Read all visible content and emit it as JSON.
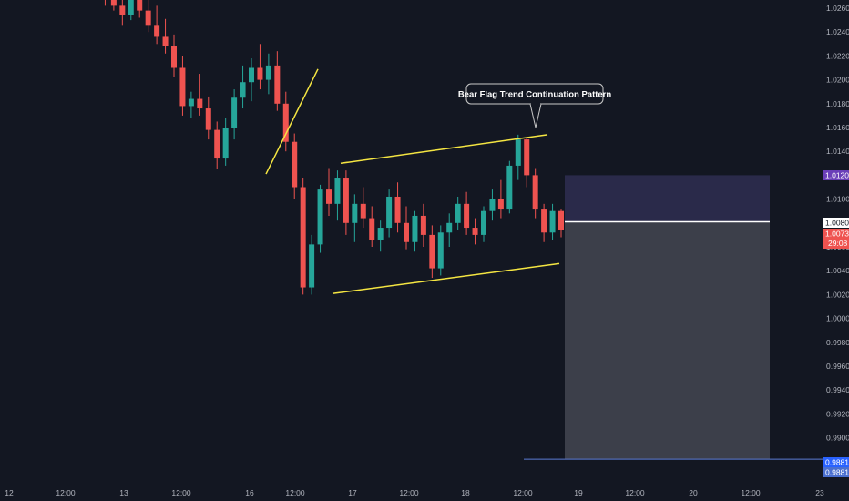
{
  "chart_data": {
    "type": "candlestick",
    "title": "",
    "xlabel": "",
    "ylabel": "",
    "ylim": [
      0.9865,
      1.028
    ],
    "grid": false,
    "y_ticks": [
      "1.02600",
      "1.02400",
      "1.02200",
      "1.02000",
      "1.01800",
      "1.01600",
      "1.01400",
      "1.01200",
      "1.01000",
      "1.00800",
      "1.00600",
      "1.00400",
      "1.00200",
      "1.00000",
      "0.99800",
      "0.99600",
      "0.99400",
      "0.99200",
      "0.99000",
      "0.98800"
    ],
    "x_ticks": [
      "12",
      "12:00",
      "13",
      "12:00",
      "16",
      "12:00",
      "17",
      "12:00",
      "18",
      "12:00",
      "19",
      "12:00",
      "20",
      "12:00",
      "23"
    ],
    "colors": {
      "up": "#26a69a",
      "down": "#ef5350",
      "trendline": "#f5e642",
      "target_zone": "#2a2a4a",
      "stop_zone": "#3c3f4a"
    },
    "series": [
      {
        "values": [
          [
            1.0275,
            1.0286,
            1.0268,
            1.0272
          ],
          [
            1.0272,
            1.0282,
            1.0262,
            1.0268
          ],
          [
            1.0268,
            1.028,
            1.0258,
            1.0262
          ],
          [
            1.0262,
            1.027,
            1.0246,
            1.0254
          ],
          [
            1.0254,
            1.0278,
            1.025,
            1.027
          ],
          [
            1.027,
            1.0281,
            1.0252,
            1.0258
          ],
          [
            1.0258,
            1.0274,
            1.024,
            1.0246
          ],
          [
            1.0246,
            1.0262,
            1.023,
            1.0236
          ],
          [
            1.0236,
            1.0251,
            1.0222,
            1.0228
          ],
          [
            1.0228,
            1.0238,
            1.0202,
            1.021
          ],
          [
            1.021,
            1.022,
            1.017,
            1.0178
          ],
          [
            1.0178,
            1.019,
            1.0168,
            1.0184
          ],
          [
            1.0184,
            1.0205,
            1.017,
            1.0176
          ],
          [
            1.0176,
            1.0186,
            1.015,
            1.0158
          ],
          [
            1.0158,
            1.0165,
            1.0125,
            1.0134
          ],
          [
            1.0134,
            1.0168,
            1.0128,
            1.016
          ],
          [
            1.016,
            1.0192,
            1.015,
            1.0185
          ],
          [
            1.0185,
            1.0212,
            1.0176,
            1.0198
          ],
          [
            1.0198,
            1.0218,
            1.0182,
            1.021
          ],
          [
            1.021,
            1.023,
            1.0192,
            1.02
          ],
          [
            1.02,
            1.0222,
            1.0188,
            1.0212
          ],
          [
            1.0212,
            1.0224,
            1.0174,
            1.018
          ],
          [
            1.018,
            1.019,
            1.014,
            1.0148
          ],
          [
            1.0148,
            1.0155,
            1.01,
            1.011
          ],
          [
            1.011,
            1.0118,
            1.002,
            1.0026
          ],
          [
            1.0026,
            1.007,
            1.002,
            1.0062
          ],
          [
            1.0062,
            1.0112,
            1.0055,
            1.0108
          ],
          [
            1.0108,
            1.0126,
            1.0086,
            1.0096
          ],
          [
            1.0096,
            1.0124,
            1.0082,
            1.0118
          ],
          [
            1.0118,
            1.0124,
            1.007,
            1.008
          ],
          [
            1.008,
            1.0104,
            1.0064,
            1.0096
          ],
          [
            1.0096,
            1.011,
            1.0076,
            1.0084
          ],
          [
            1.0084,
            1.0094,
            1.006,
            1.0066
          ],
          [
            1.0066,
            1.0082,
            1.0056,
            1.0076
          ],
          [
            1.0076,
            1.0108,
            1.0068,
            1.0102
          ],
          [
            1.0102,
            1.0114,
            1.0072,
            1.008
          ],
          [
            1.008,
            1.0094,
            1.0058,
            1.0064
          ],
          [
            1.0064,
            1.009,
            1.0056,
            1.0086
          ],
          [
            1.0086,
            1.0096,
            1.006,
            1.007
          ],
          [
            1.007,
            1.0078,
            1.0034,
            1.0042
          ],
          [
            1.0042,
            1.0078,
            1.0036,
            1.0072
          ],
          [
            1.0072,
            1.0088,
            1.006,
            1.008
          ],
          [
            1.008,
            1.0102,
            1.0074,
            1.0096
          ],
          [
            1.0096,
            1.0106,
            1.007,
            1.0076
          ],
          [
            1.0076,
            1.0084,
            1.0062,
            1.007
          ],
          [
            1.007,
            1.0094,
            1.0064,
            1.009
          ],
          [
            1.009,
            1.0108,
            1.0082,
            1.01
          ],
          [
            1.01,
            1.0116,
            1.0084,
            1.0092
          ],
          [
            1.0092,
            1.0132,
            1.0088,
            1.0128
          ],
          [
            1.0128,
            1.0154,
            1.0116,
            1.015
          ],
          [
            1.015,
            1.0152,
            1.011,
            1.012
          ],
          [
            1.012,
            1.0126,
            1.0084,
            1.0092
          ],
          [
            1.0092,
            1.0096,
            1.0064,
            1.0072
          ],
          [
            1.0072,
            1.0096,
            1.0066,
            1.009
          ],
          [
            1.009,
            1.0092,
            1.0068,
            1.0074
          ]
        ]
      }
    ],
    "annotations": {
      "callout": "Bear Flag Trend Continuation Pattern",
      "entry_price": "1.00807",
      "target_price": "1.01201",
      "current_price": "1.00732",
      "countdown": "29:08",
      "stop_price_1": "0.98819",
      "stop_price_2": "0.98815",
      "target_level": 1.012,
      "entry_level": 1.0081,
      "stop_level": 0.9882,
      "flag_upper": [
        [
          1.013,
          1.0154
        ]
      ],
      "flag_lower": [
        [
          1.0021,
          1.0046
        ]
      ],
      "pole": [
        [
          1.0121,
          1.0209
        ]
      ]
    }
  }
}
